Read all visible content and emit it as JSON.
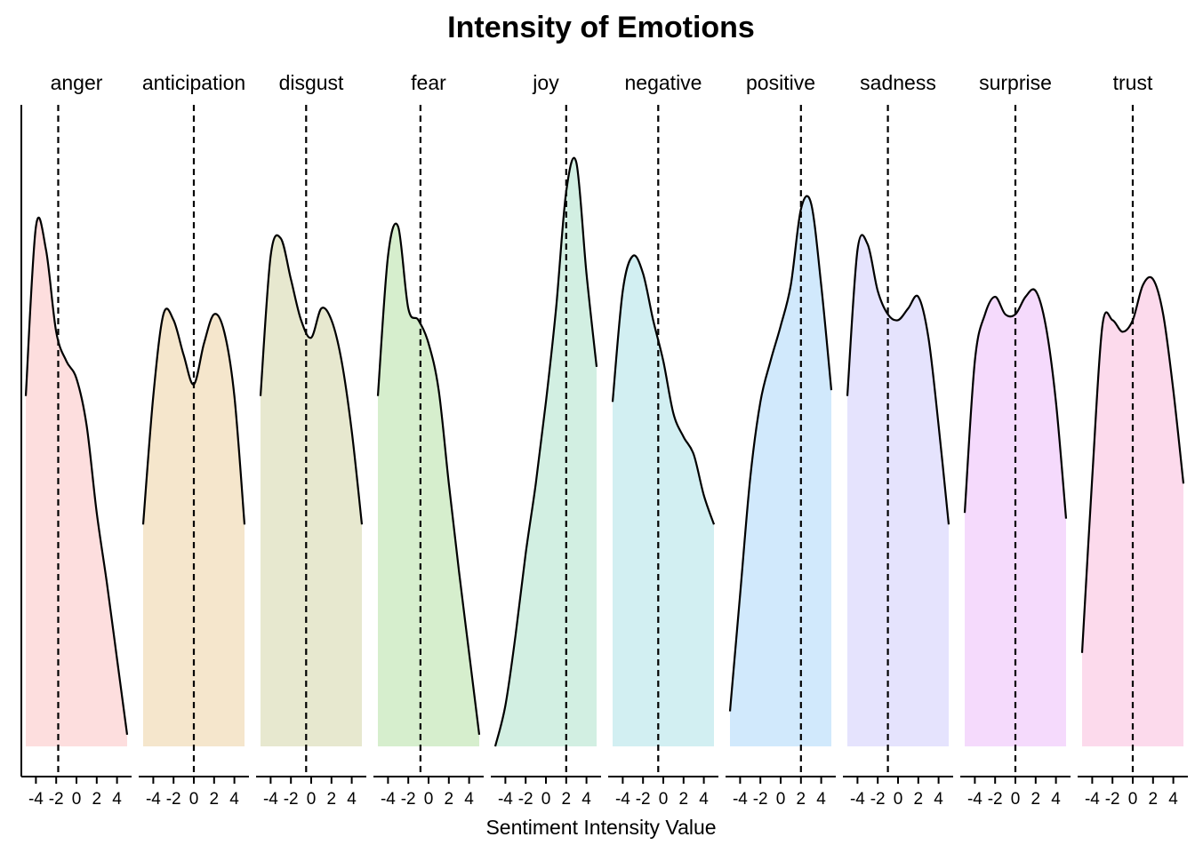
{
  "chart_data": {
    "type": "area",
    "title": "Intensity of Emotions",
    "xlabel": "Sentiment Intensity Value",
    "ylabel": "",
    "xlim": [
      -5,
      5
    ],
    "xticks": [
      -4,
      -2,
      0,
      2,
      4
    ],
    "xtick_labels": [
      "-4",
      "-2",
      "0",
      "2",
      "4"
    ],
    "ylim": [
      0,
      1.05
    ],
    "grid": false,
    "legend": "none",
    "x": [
      -5,
      -4,
      -3,
      -2,
      -1,
      0,
      1,
      2,
      3,
      4,
      5
    ],
    "series": [
      {
        "name": "anger",
        "color": "#fddede",
        "mean": -1.8,
        "values": [
          0.6,
          0.89,
          0.85,
          0.71,
          0.66,
          0.63,
          0.55,
          0.4,
          0.28,
          0.15,
          0.02
        ]
      },
      {
        "name": "anticipation",
        "color": "#f5e6cc",
        "mean": 0,
        "values": [
          0.38,
          0.6,
          0.74,
          0.73,
          0.67,
          0.62,
          0.69,
          0.74,
          0.71,
          0.6,
          0.38
        ]
      },
      {
        "name": "disgust",
        "color": "#e7e8cf",
        "mean": -0.5,
        "values": [
          0.6,
          0.84,
          0.87,
          0.8,
          0.73,
          0.7,
          0.75,
          0.73,
          0.66,
          0.54,
          0.38
        ]
      },
      {
        "name": "fear",
        "color": "#d6eecd",
        "mean": -0.8,
        "values": [
          0.6,
          0.84,
          0.89,
          0.75,
          0.73,
          0.69,
          0.61,
          0.45,
          0.3,
          0.16,
          0.02
        ]
      },
      {
        "name": "joy",
        "color": "#d2efe2",
        "mean": 2,
        "values": [
          0.0,
          0.07,
          0.19,
          0.33,
          0.45,
          0.59,
          0.75,
          0.95,
          1.0,
          0.81,
          0.65
        ]
      },
      {
        "name": "negative",
        "color": "#d2eff2",
        "mean": -0.5,
        "values": [
          0.59,
          0.78,
          0.84,
          0.81,
          0.73,
          0.66,
          0.57,
          0.53,
          0.5,
          0.43,
          0.38
        ]
      },
      {
        "name": "positive",
        "color": "#d1e9fc",
        "mean": 2,
        "values": [
          0.06,
          0.26,
          0.46,
          0.59,
          0.66,
          0.72,
          0.79,
          0.92,
          0.93,
          0.79,
          0.61
        ]
      },
      {
        "name": "sadness",
        "color": "#e5e3fd",
        "mean": -1,
        "values": [
          0.6,
          0.85,
          0.86,
          0.78,
          0.74,
          0.73,
          0.75,
          0.77,
          0.7,
          0.55,
          0.38
        ]
      },
      {
        "name": "surprise",
        "color": "#f5dafc",
        "mean": 0,
        "values": [
          0.4,
          0.66,
          0.74,
          0.77,
          0.74,
          0.74,
          0.77,
          0.78,
          0.72,
          0.59,
          0.39
        ]
      },
      {
        "name": "trust",
        "color": "#fcdaec",
        "mean": 0,
        "values": [
          0.16,
          0.46,
          0.72,
          0.73,
          0.71,
          0.73,
          0.79,
          0.8,
          0.74,
          0.61,
          0.45
        ]
      }
    ]
  }
}
